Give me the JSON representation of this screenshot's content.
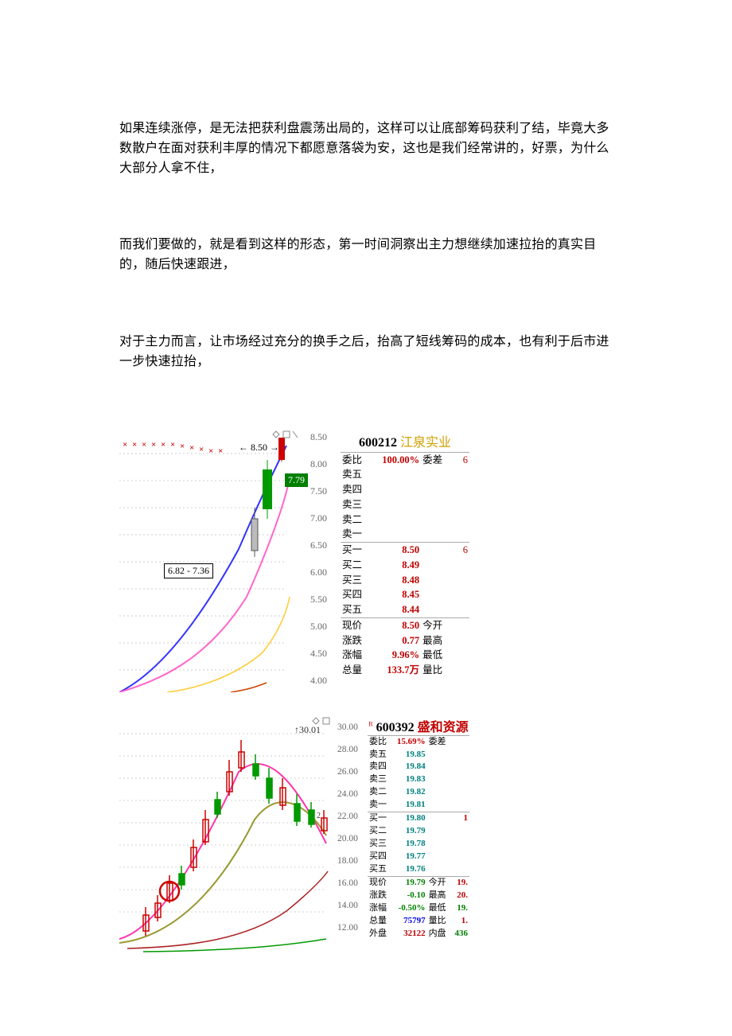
{
  "text": {
    "para1": "如果连续涨停，是无法把获利盘震荡出局的，这样可以让底部筹码获利了结，毕竟大多数散户在面对获利丰厚的情况下都愿意落袋为安，这也是我们经常讲的，好票，为什么大部分人拿不住，",
    "para2": "而我们要做的，就是看到这样的形态，第一时间洞察出主力想继续加速拉抬的真实目的，随后快速跟进，",
    "para3": "对于主力而言，让市场经过充分的换手之后，抬高了短线筹码的成本，也有利于后市进一步快速拉抬，"
  },
  "stock1": {
    "code": "600212",
    "name": "江泉实业",
    "title_code_color": "#000000",
    "title_name_color": "#d0a000",
    "委比_label": "委比",
    "委比_value": "100.00%",
    "委差_label": "委差",
    "委差_value": "6",
    "sell_labels": [
      "卖五",
      "卖四",
      "卖三",
      "卖二",
      "卖一"
    ],
    "buy": [
      {
        "label": "买一",
        "price": "8.50",
        "extra": "6"
      },
      {
        "label": "买二",
        "price": "8.49",
        "extra": ""
      },
      {
        "label": "买三",
        "price": "8.48",
        "extra": ""
      },
      {
        "label": "买四",
        "price": "8.45",
        "extra": ""
      },
      {
        "label": "买五",
        "price": "8.44",
        "extra": ""
      }
    ],
    "quotes": [
      {
        "l1": "现价",
        "v1": "8.50",
        "l2": "今开",
        "v2": ""
      },
      {
        "l1": "涨跌",
        "v1": "0.77",
        "l2": "最高",
        "v2": ""
      },
      {
        "l1": "涨幅",
        "v1": "9.96%",
        "l2": "最低",
        "v2": ""
      },
      {
        "l1": "总量",
        "v1": "133.7万",
        "l2": "量比",
        "v2": ""
      }
    ],
    "chart": {
      "tag_price": "8.50",
      "tag_current": "7.79",
      "tag_range": "6.82 - 7.36",
      "y_ticks": [
        "8.50",
        "8.00",
        "7.50",
        "7.00",
        "6.50",
        "6.00",
        "5.50",
        "5.00",
        "4.50",
        "4.00"
      ],
      "y_tick_tops": [
        2,
        36,
        70,
        104,
        138,
        172,
        206,
        240,
        274,
        308
      ],
      "line_colors": {
        "purple": "#800080",
        "red": "#cc0000",
        "pink": "#ff66cc",
        "blue": "#3333ff"
      },
      "grid_color": "#cccccc",
      "candle_green": "#009900",
      "candle_red": "#cc0000"
    }
  },
  "stock2": {
    "code_prefix": "R",
    "code": "600392",
    "name": "盛和资源",
    "title_name_color": "#c00000",
    "委比_label": "委比",
    "委比_value": "15.69%",
    "委差_label": "委差",
    "sell": [
      {
        "label": "卖五",
        "price": "19.85"
      },
      {
        "label": "卖四",
        "price": "19.84"
      },
      {
        "label": "卖三",
        "price": "19.83"
      },
      {
        "label": "卖二",
        "price": "19.82"
      },
      {
        "label": "卖一",
        "price": "19.81"
      }
    ],
    "buy": [
      {
        "label": "买一",
        "price": "19.80",
        "extra": "1"
      },
      {
        "label": "买二",
        "price": "19.79"
      },
      {
        "label": "买三",
        "price": "19.78"
      },
      {
        "label": "买四",
        "price": "19.77"
      },
      {
        "label": "买五",
        "price": "19.76"
      }
    ],
    "quotes": [
      {
        "l1": "现价",
        "v1": "19.79",
        "c1": "grn",
        "l2": "今开",
        "v2": "19.",
        "c2": "redb"
      },
      {
        "l1": "涨跌",
        "v1": "-0.10",
        "c1": "grn",
        "l2": "最高",
        "v2": "20.",
        "c2": "redb"
      },
      {
        "l1": "涨幅",
        "v1": "-0.50%",
        "c1": "grn",
        "l2": "最低",
        "v2": "19.",
        "c2": "grn"
      },
      {
        "l1": "总量",
        "v1": "75797",
        "c1": "blu",
        "l2": "量比",
        "v2": "1.",
        "c2": "redb"
      },
      {
        "l1": "外盘",
        "v1": "32122",
        "c1": "redb",
        "l2": "内盘",
        "v2": "436",
        "c2": "grn"
      }
    ],
    "chart": {
      "tag_price": "30.01",
      "y_ticks": [
        "30.00",
        "28.00",
        "26.00",
        "24.00",
        "22.00",
        "20.00",
        "18.00",
        "16.00",
        "14.00",
        "12.00"
      ],
      "y_tick_tops": [
        8,
        36,
        64,
        92,
        120,
        148,
        176,
        204,
        232,
        260
      ],
      "line_colors": {
        "pink": "#ff33aa",
        "olive": "#999933",
        "brown": "#aa2222",
        "green": "#009900"
      },
      "grid_color": "#d0d0d0",
      "candle_red": "#cc0000",
      "candle_green": "#009900",
      "circle_color": "#cc0000"
    }
  }
}
